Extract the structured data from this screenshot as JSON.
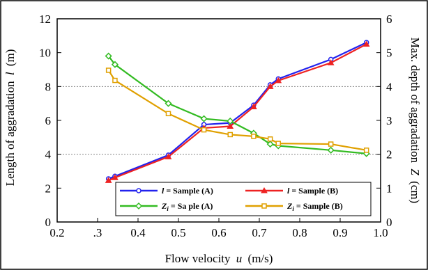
{
  "chart_data": {
    "type": "line",
    "xlabel": "Flow velocity",
    "xlabel_symbol": "u",
    "xlabel_unit": "(m/s)",
    "ylabel_left": "Length of aggradation",
    "ylabel_left_symbol": "l",
    "ylabel_left_unit": "(m)",
    "ylabel_right": "Max. depth of aggradation",
    "ylabel_right_symbol": "Z",
    "ylabel_right_unit": "(cm)",
    "xlim": [
      0.2,
      1.0
    ],
    "ylim_left": [
      0,
      12
    ],
    "ylim_right": [
      0,
      6
    ],
    "x_ticks": [
      "0.2",
      "0.3",
      "0.4",
      "0.5",
      "0.6",
      "0.7",
      "0.8",
      "0.9",
      "1.0"
    ],
    "x_ticks_shown": [
      ".3",
      "0.4",
      "0.5",
      "0.6",
      "0.7",
      "0.8",
      "0.9",
      "1.0"
    ],
    "y_left_ticks": [
      "0",
      "2",
      "4",
      "6",
      "8",
      "10",
      "12"
    ],
    "y_right_ticks": [
      "0",
      "1",
      "2",
      "3",
      "4",
      "5",
      "6"
    ],
    "grid": "dashed horizontal at 4 and 8",
    "legend_position": "bottom-center",
    "series": [
      {
        "name": "l = Sample (A)",
        "symbol": "l",
        "label": " = Sample (A)",
        "axis": "left",
        "color": "#2222ee",
        "marker": "circle",
        "x": [
          0.327,
          0.343,
          0.475,
          0.563,
          0.628,
          0.686,
          0.727,
          0.747,
          0.877,
          0.965
        ],
        "y": [
          2.55,
          2.7,
          3.95,
          5.75,
          5.85,
          6.9,
          8.1,
          8.45,
          9.6,
          10.6
        ]
      },
      {
        "name": "l = Sample (B)",
        "symbol": "l",
        "label": " = Sample (B)",
        "axis": "left",
        "color": "#ee2222",
        "marker": "triangle",
        "x": [
          0.327,
          0.343,
          0.475,
          0.563,
          0.628,
          0.686,
          0.727,
          0.747,
          0.877,
          0.965
        ],
        "y": [
          2.45,
          2.62,
          3.85,
          5.55,
          5.65,
          6.8,
          8.0,
          8.35,
          9.4,
          10.5
        ]
      },
      {
        "name": "Zi = Sa ple (A)",
        "symbol": "Z",
        "symbol_sub": "i",
        "label": " = Sa   ple (A)",
        "axis": "right",
        "color": "#33bb22",
        "marker": "diamond",
        "x": [
          0.327,
          0.343,
          0.475,
          0.563,
          0.628,
          0.686,
          0.727,
          0.747,
          0.877,
          0.965
        ],
        "y": [
          4.9,
          4.65,
          3.5,
          3.05,
          2.98,
          2.62,
          2.3,
          2.25,
          2.12,
          2.02
        ]
      },
      {
        "name": "Zi = Sample (B)",
        "symbol": "Z",
        "symbol_sub": "i",
        "label": " = Sample (B)",
        "axis": "right",
        "color": "#e0a000",
        "marker": "square",
        "x": [
          0.327,
          0.343,
          0.475,
          0.563,
          0.628,
          0.686,
          0.727,
          0.747,
          0.877,
          0.965
        ],
        "y": [
          4.48,
          4.18,
          3.2,
          2.72,
          2.58,
          2.53,
          2.45,
          2.32,
          2.3,
          2.12
        ]
      }
    ]
  }
}
